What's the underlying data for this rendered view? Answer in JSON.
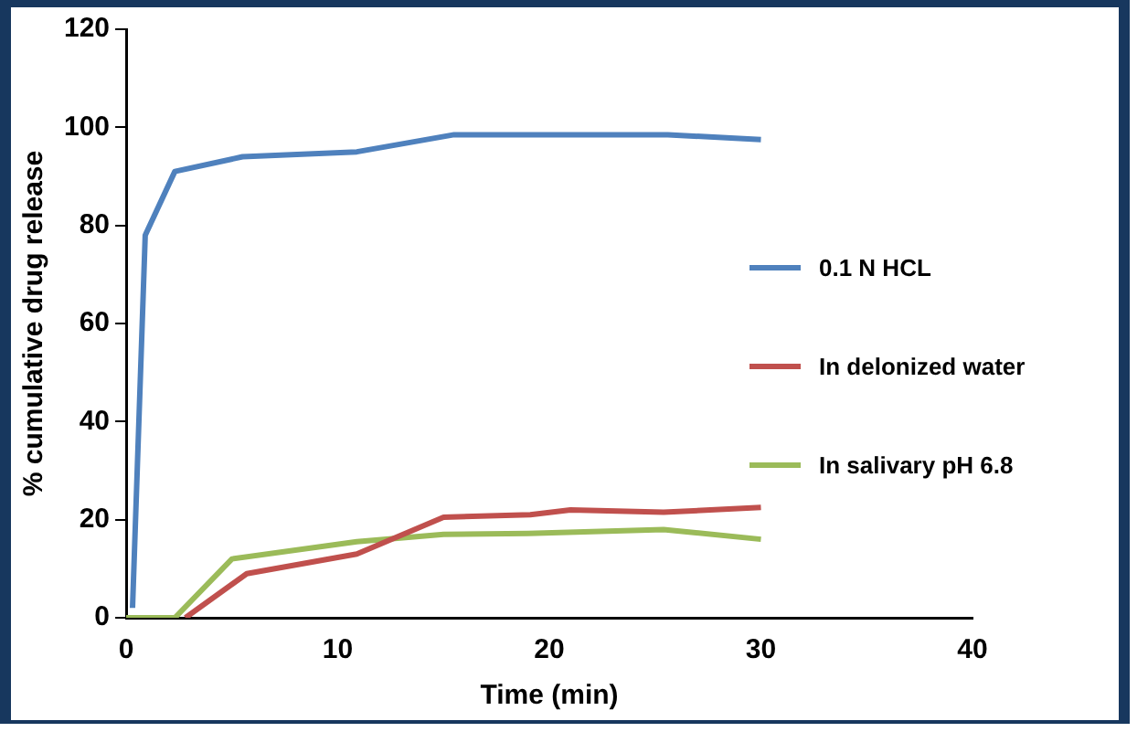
{
  "chart_data": {
    "type": "line",
    "xlabel": "Time (min)",
    "ylabel": "% cumulative drug release",
    "xlim": [
      0,
      40
    ],
    "xticks": [
      0,
      10,
      20,
      30,
      40
    ],
    "ylim": [
      0,
      120
    ],
    "yticks": [
      0,
      20,
      40,
      60,
      80,
      100,
      120
    ],
    "grid": false,
    "legend": "right",
    "marker": "none",
    "line_style": "solid",
    "series": [
      {
        "name": "0.1 N HCL",
        "color": "#4f81bd",
        "x": [
          0.3,
          0.9,
          2.3,
          5.5,
          10.9,
          15.5,
          25.6,
          30
        ],
        "values": [
          2,
          78,
          91,
          94,
          95,
          98.5,
          98.5,
          97.5
        ]
      },
      {
        "name": "In delonized water",
        "color": "#c0504d",
        "x": [
          2.8,
          5.7,
          10.9,
          15,
          19.1,
          21,
          25.4,
          30
        ],
        "values": [
          0,
          9,
          13,
          20.5,
          21,
          22,
          21.5,
          22.5
        ]
      },
      {
        "name": "In salivary pH 6.8",
        "color": "#9bbb59",
        "x": [
          0,
          2.3,
          5,
          10.9,
          15,
          19,
          25.4,
          30
        ],
        "values": [
          0,
          0,
          12,
          15.5,
          17,
          17.2,
          18,
          16
        ]
      }
    ]
  }
}
